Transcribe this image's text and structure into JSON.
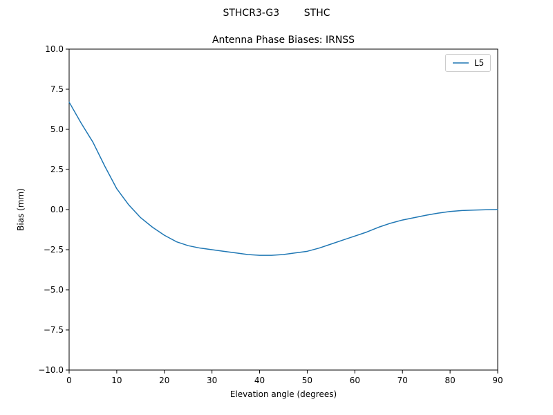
{
  "chart_data": {
    "type": "line",
    "suptitle": "STHCR3-G3        STHC",
    "title": "Antenna Phase Biases: IRNSS",
    "xlabel": "Elevation angle (degrees)",
    "ylabel": "Bias (mm)",
    "xlim": [
      0,
      90
    ],
    "ylim": [
      -10,
      10
    ],
    "grid": false,
    "legend_position": "upper right",
    "xticks": [
      {
        "value": 0,
        "label": "0"
      },
      {
        "value": 10,
        "label": "10"
      },
      {
        "value": 20,
        "label": "20"
      },
      {
        "value": 30,
        "label": "30"
      },
      {
        "value": 40,
        "label": "40"
      },
      {
        "value": 50,
        "label": "50"
      },
      {
        "value": 60,
        "label": "60"
      },
      {
        "value": 70,
        "label": "70"
      },
      {
        "value": 80,
        "label": "80"
      },
      {
        "value": 90,
        "label": "90"
      }
    ],
    "yticks": [
      {
        "value": -10,
        "label": "−10.0"
      },
      {
        "value": -7.5,
        "label": "−7.5"
      },
      {
        "value": -5,
        "label": "−5.0"
      },
      {
        "value": -2.5,
        "label": "−2.5"
      },
      {
        "value": 0,
        "label": "0.0"
      },
      {
        "value": 2.5,
        "label": "2.5"
      },
      {
        "value": 5,
        "label": "5.0"
      },
      {
        "value": 7.5,
        "label": "7.5"
      },
      {
        "value": 10,
        "label": "10.0"
      }
    ],
    "series": [
      {
        "name": "L5",
        "color": "#1f77b4",
        "x": [
          0,
          2.5,
          5,
          7.5,
          10,
          12.5,
          15,
          17.5,
          20,
          22.5,
          25,
          27.5,
          30,
          32.5,
          35,
          37.5,
          40,
          42.5,
          45,
          47.5,
          50,
          52.5,
          55,
          57.5,
          60,
          62.5,
          65,
          67.5,
          70,
          72.5,
          75,
          77.5,
          80,
          82.5,
          85,
          87.5,
          90
        ],
        "y": [
          6.7,
          5.4,
          4.2,
          2.7,
          1.3,
          0.3,
          -0.5,
          -1.1,
          -1.6,
          -2.0,
          -2.25,
          -2.4,
          -2.5,
          -2.6,
          -2.7,
          -2.8,
          -2.85,
          -2.85,
          -2.8,
          -2.7,
          -2.6,
          -2.4,
          -2.15,
          -1.9,
          -1.65,
          -1.4,
          -1.1,
          -0.85,
          -0.65,
          -0.5,
          -0.35,
          -0.22,
          -0.12,
          -0.06,
          -0.03,
          -0.01,
          0.0
        ]
      }
    ]
  }
}
